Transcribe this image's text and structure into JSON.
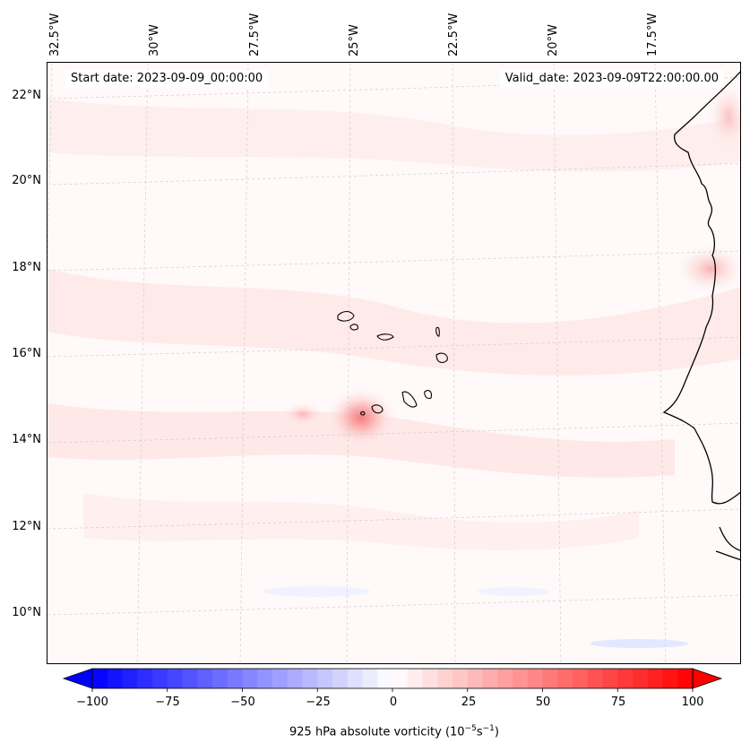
{
  "map": {
    "start_date": "Start date: 2023-09-09_00:00:00",
    "valid_date": "Valid_date: 2023-09-09T22:00:00.00",
    "longitude_labels": [
      "32.5°W",
      "30°W",
      "27.5°W",
      "25°W",
      "22.5°W",
      "20°W",
      "17.5°W"
    ],
    "latitude_labels": [
      "22°N",
      "20°N",
      "18°N",
      "16°N",
      "14°N",
      "12°N",
      "10°N"
    ],
    "field": "925 hPa absolute vorticity",
    "colors": {
      "coastline": "#000000",
      "gridline": "#c8c8c8",
      "background_weak_positive": "#fff4f4",
      "max_positive": "#ff0000",
      "max_negative": "#0000ff"
    }
  },
  "colorbar": {
    "label_prefix": "925 hPa absolute vorticity (10",
    "label_exp1": "−5",
    "label_mid": "s",
    "label_exp2": "−1",
    "label_suffix": ")",
    "ticks": [
      "−100",
      "−75",
      "−50",
      "−25",
      "0",
      "25",
      "50",
      "75",
      "100"
    ],
    "min": -100,
    "max": 100,
    "extend": "both"
  }
}
